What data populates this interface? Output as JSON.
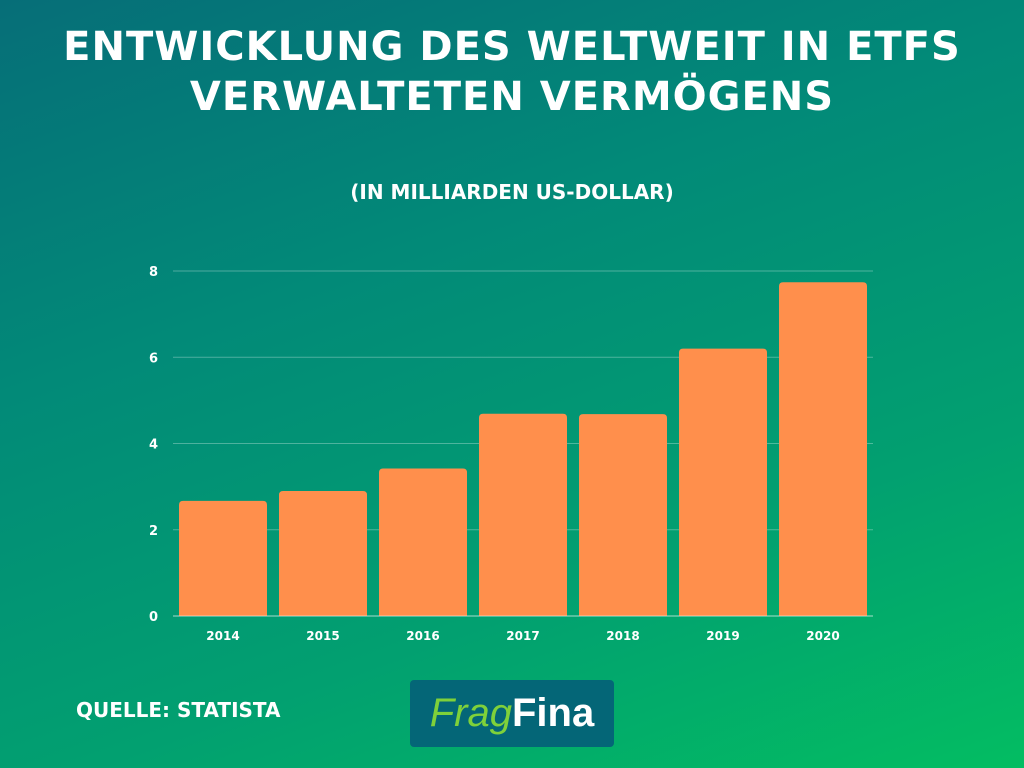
{
  "chart_data": {
    "type": "bar",
    "title": "Entwicklung des weltweit in ETFs verwalteten Vermögens",
    "subtitle": "(in Milliarden US-Dollar)",
    "categories": [
      "2014",
      "2015",
      "2016",
      "2017",
      "2018",
      "2019",
      "2020"
    ],
    "values": [
      2.67,
      2.9,
      3.42,
      4.69,
      4.68,
      6.2,
      7.74
    ],
    "yticks": [
      "0",
      "2",
      "4",
      "6",
      "8"
    ],
    "ylim": [
      0,
      8
    ],
    "xlabel": "",
    "ylabel": "",
    "grid": true,
    "bar_color": "#ff8f4c"
  },
  "source": "Quelle: Statista",
  "logo": {
    "part1": "Frag",
    "part2": "Fina"
  }
}
